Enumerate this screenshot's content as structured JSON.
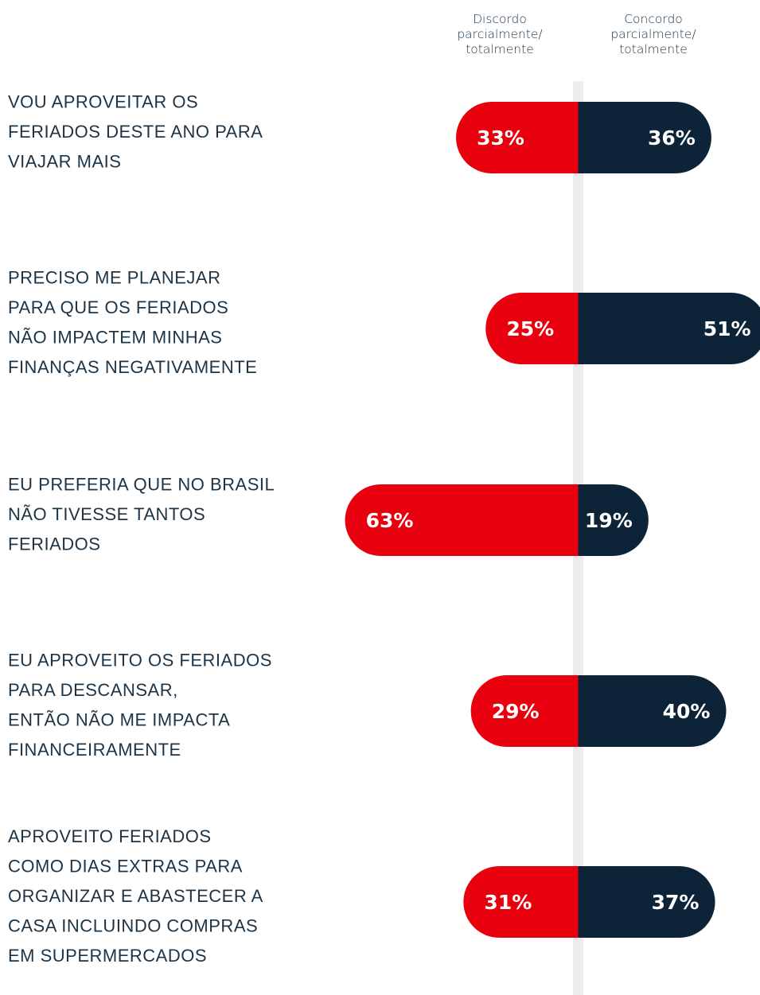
{
  "chart_data": {
    "type": "diverging_bar",
    "categories": [
      [
        "VOU APROVEITAR OS",
        "FERIADOS DESTE ANO PARA",
        "VIAJAR MAIS"
      ],
      [
        "PRECISO ME PLANEJAR",
        "PARA QUE OS FERIADOS",
        "NÃO IMPACTEM MINHAS",
        "FINANÇAS NEGATIVAMENTE"
      ],
      [
        "EU PREFERIA QUE NO BRASIL",
        "NÃO TIVESSE TANTOS",
        "FERIADOS"
      ],
      [
        "EU APROVEITO OS FERIADOS",
        "PARA DESCANSAR,",
        "ENTÃO NÃO ME IMPACTA",
        "FINANCEIRAMENTE"
      ],
      [
        "APROVEITO FERIADOS",
        "COMO DIAS EXTRAS PARA",
        "ORGANIZAR E ABASTECER A",
        "CASA INCLUINDO COMPRAS",
        "EM SUPERMERCADOS"
      ]
    ],
    "series": [
      {
        "name": "Discordo parcialmente/ totalmente",
        "color": "#e8000f",
        "values": [
          33,
          25,
          63,
          29,
          31
        ],
        "value_labels": [
          "33%",
          "25%",
          "63%",
          "29%",
          "31%"
        ]
      },
      {
        "name": "Concordo parcialmente/ totalmente",
        "color": "#0d2438",
        "values": [
          36,
          51,
          19,
          40,
          37
        ],
        "value_labels": [
          "36%",
          "51%",
          "19%",
          "40%",
          "37%"
        ]
      }
    ]
  }
}
